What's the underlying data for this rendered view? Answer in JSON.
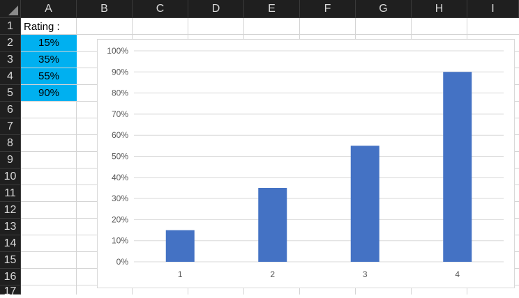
{
  "columns": [
    "A",
    "B",
    "C",
    "D",
    "E",
    "F",
    "G",
    "H",
    "I"
  ],
  "rows": [
    "1",
    "2",
    "3",
    "4",
    "5",
    "6",
    "7",
    "8",
    "9",
    "10",
    "11",
    "12",
    "13",
    "14",
    "15",
    "16",
    "17"
  ],
  "cells": {
    "a1": "Rating :",
    "a2": "15%",
    "a3": "35%",
    "a4": "55%",
    "a5": "90%"
  },
  "colors": {
    "value_fill": "#00b0f0",
    "bar": "#4472c4",
    "header_bg": "#1f1f1f"
  },
  "chart_data": {
    "type": "bar",
    "categories": [
      "1",
      "2",
      "3",
      "4"
    ],
    "values": [
      15,
      35,
      55,
      90
    ],
    "ylim": [
      0,
      100
    ],
    "yticks": [
      "0%",
      "10%",
      "20%",
      "30%",
      "40%",
      "50%",
      "60%",
      "70%",
      "80%",
      "90%",
      "100%"
    ],
    "grid": true,
    "legend": "none"
  }
}
